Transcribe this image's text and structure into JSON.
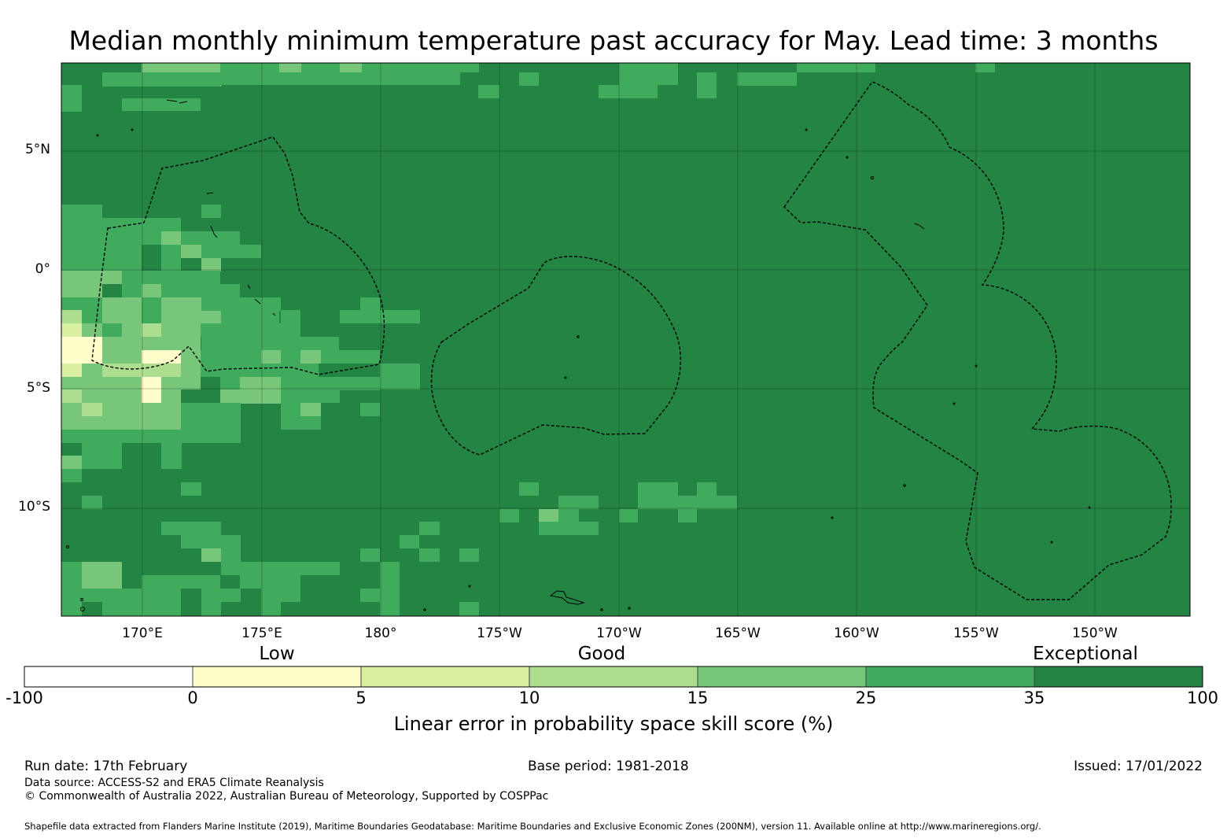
{
  "title": "Median monthly minimum temperature past accuracy for May. Lead time: 3 months",
  "map": {
    "lat_labels": [
      "5°N",
      "0°",
      "5°S",
      "10°S"
    ],
    "lon_labels": [
      "170°E",
      "175°E",
      "180°",
      "175°W",
      "170°W",
      "165°W",
      "160°W",
      "155°W",
      "150°W"
    ],
    "background_color": "#238443"
  },
  "colorbar": {
    "category_labels": [
      "Low",
      "Good",
      "Exceptional"
    ],
    "ticks": [
      "-100",
      "0",
      "5",
      "10",
      "15",
      "25",
      "35",
      "100"
    ],
    "colors": [
      "#ffffff",
      "#ffffcc",
      "#d9f0a3",
      "#addd8e",
      "#78c679",
      "#41ab5d",
      "#238443"
    ],
    "title": "Linear error in probability space skill score (%)"
  },
  "footer": {
    "run_date": "Run date: 17th February",
    "base_period": "Base period: 1981-2018",
    "issued": "Issued: 17/01/2022",
    "data_source": "Data source: ACCESS-S2 and ERA5 Climate Reanalysis",
    "copyright": "© Commonwealth of Australia 2022, Australian Bureau of Meteorology, Supported by COSPPac",
    "shapefile": "Shapefile data extracted from Flanders Marine Institute (2019), Maritime Boundaries Geodatabase: Maritime Boundaries and Exclusive Economic Zones (200NM), version 11. Available online at http://www.marineregions.org/."
  }
}
